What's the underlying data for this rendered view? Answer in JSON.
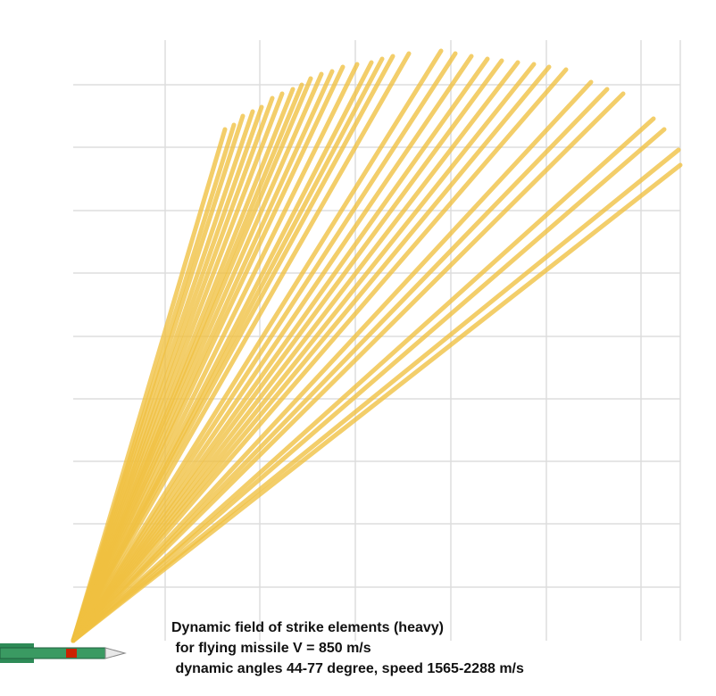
{
  "caption": {
    "line1": "Dynamic field of strike elements (heavy)",
    "line2": " for flying missile V = 850 m/s",
    "line3": " dynamic angles 44-77 degree, speed 1565-2288 m/s"
  },
  "colors": {
    "ray": "#f0c040",
    "grid": "#dddddd",
    "missile_body": "#2e8b57",
    "missile_band": "#cc2200",
    "missile_nose": "#e8e8e8"
  },
  "chart_data": {
    "type": "diagram",
    "title": "",
    "angle_range_deg": [
      44,
      77
    ],
    "speed_range_mps": [
      1565,
      2288
    ],
    "missile_speed_mps": 850,
    "ray_count": 34,
    "grid": true
  }
}
